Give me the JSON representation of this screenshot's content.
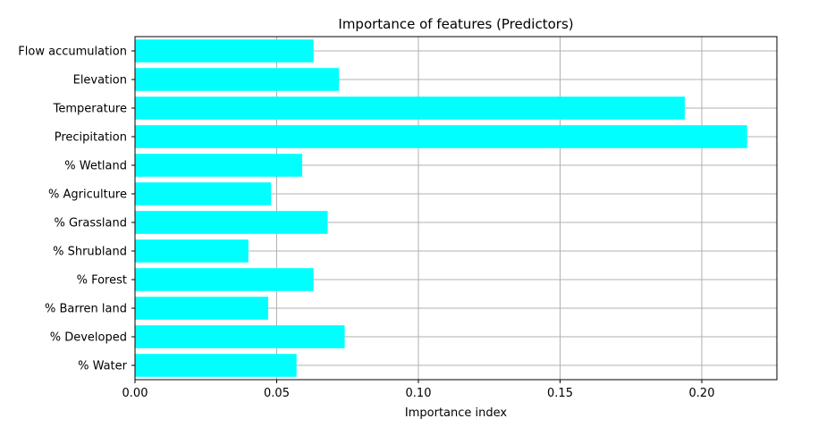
{
  "chart_data": {
    "type": "bar",
    "orientation": "horizontal",
    "title": "Importance of features (Predictors)",
    "xlabel": "Importance index",
    "ylabel": "",
    "categories": [
      "Flow accumulation",
      "Elevation",
      "Temperature",
      "Precipitation",
      "% Wetland",
      "% Agriculture",
      "% Grassland",
      "% Shrubland",
      "% Forest",
      "% Barren land",
      "% Developed",
      "% Water"
    ],
    "values": [
      0.063,
      0.072,
      0.194,
      0.216,
      0.059,
      0.048,
      0.068,
      0.04,
      0.063,
      0.047,
      0.074,
      0.057
    ],
    "xlim": [
      0,
      0.2265
    ],
    "xticks": [
      0.0,
      0.05,
      0.1,
      0.15,
      0.2
    ],
    "xtick_labels": [
      "0.00",
      "0.05",
      "0.10",
      "0.15",
      "0.20"
    ],
    "grid": true,
    "bar_color": "#00ffff"
  }
}
